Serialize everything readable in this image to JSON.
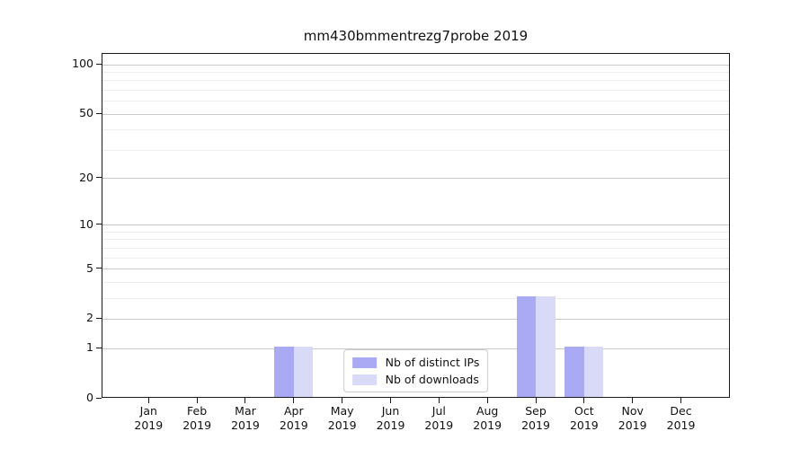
{
  "title": "mm430bmmentrezg7probe 2019",
  "chart_data": {
    "type": "bar",
    "title": "mm430bmmentrezg7probe 2019",
    "categories": [
      "Jan 2019",
      "Feb 2019",
      "Mar 2019",
      "Apr 2019",
      "May 2019",
      "Jun 2019",
      "Jul 2019",
      "Aug 2019",
      "Sep 2019",
      "Oct 2019",
      "Nov 2019",
      "Dec 2019"
    ],
    "series": [
      {
        "name": "Nb of distinct IPs",
        "color": "#aaaaf4",
        "values": [
          0,
          0,
          0,
          1,
          0,
          0,
          0,
          0,
          3,
          1,
          0,
          0
        ]
      },
      {
        "name": "Nb of downloads",
        "color": "#d9d9f8",
        "values": [
          0,
          0,
          0,
          1,
          0,
          0,
          0,
          0,
          3,
          1,
          0,
          0
        ]
      }
    ],
    "xlabel": "",
    "ylabel": "",
    "y_scale": "log1p",
    "y_ticks": [
      0,
      1,
      2,
      5,
      10,
      20,
      50,
      100
    ],
    "y_minor_ticks": [
      3,
      4,
      6,
      7,
      8,
      9,
      30,
      40,
      60,
      70,
      80,
      90
    ],
    "ylim": [
      0,
      116.3
    ],
    "grid": "horizontal-only",
    "legend_position": "lower center"
  },
  "colors": {
    "grid_major": "#c9c9c9",
    "grid_minor": "#ededed",
    "axis": "#1a1a1a",
    "background": "#ffffff"
  }
}
